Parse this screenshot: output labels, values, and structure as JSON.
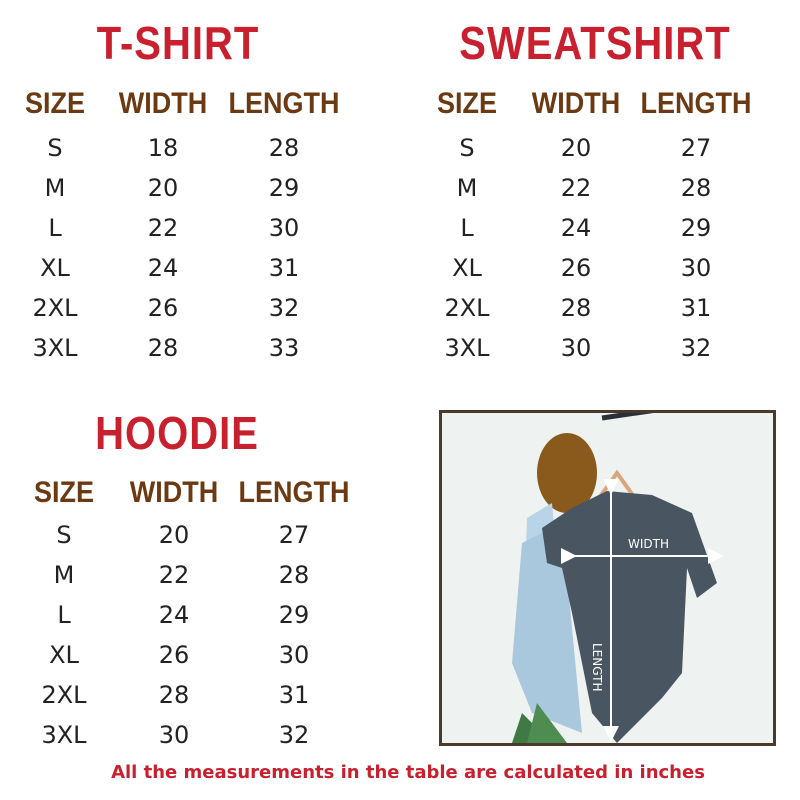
{
  "tables": [
    {
      "id": "tshirt",
      "title": "T-SHIRT",
      "headers": [
        "SIZE",
        "WIDTH",
        "LENGTH"
      ],
      "rows": [
        [
          "S",
          "18",
          "28"
        ],
        [
          "M",
          "20",
          "29"
        ],
        [
          "L",
          "22",
          "30"
        ],
        [
          "XL",
          "24",
          "31"
        ],
        [
          "2XL",
          "26",
          "32"
        ],
        [
          "3XL",
          "28",
          "33"
        ]
      ]
    },
    {
      "id": "sweatshirt",
      "title": "SWEATSHIRT",
      "headers": [
        "SIZE",
        "WIDTH",
        "LENGTH"
      ],
      "rows": [
        [
          "S",
          "20",
          "27"
        ],
        [
          "M",
          "22",
          "28"
        ],
        [
          "L",
          "24",
          "29"
        ],
        [
          "XL",
          "26",
          "30"
        ],
        [
          "2XL",
          "28",
          "31"
        ],
        [
          "3XL",
          "30",
          "32"
        ]
      ]
    },
    {
      "id": "hoodie",
      "title": "HOODIE",
      "headers": [
        "SIZE",
        "WIDTH",
        "LENGTH"
      ],
      "rows": [
        [
          "S",
          "20",
          "27"
        ],
        [
          "M",
          "22",
          "28"
        ],
        [
          "L",
          "24",
          "29"
        ],
        [
          "XL",
          "26",
          "30"
        ],
        [
          "2XL",
          "28",
          "31"
        ],
        [
          "3XL",
          "30",
          "32"
        ]
      ]
    }
  ],
  "photo": {
    "width_label": "WIDTH",
    "length_label": "LENGTH"
  },
  "footer": "All the measurements in the table are calculated in inches",
  "colors": {
    "title": "#c8202f",
    "header": "#6b3a12",
    "footer": "#c8202f"
  }
}
